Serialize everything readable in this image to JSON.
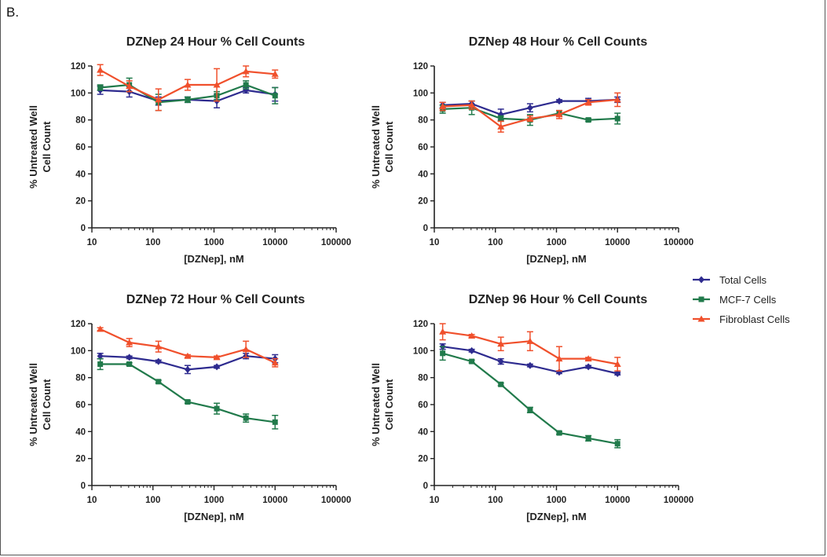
{
  "panel_label": "B.",
  "colors": {
    "Total Cells": "#2e2b8f",
    "MCF-7 Cells": "#217a4b",
    "Fibroblast Cells": "#f0502c"
  },
  "legend": [
    "Total Cells",
    "MCF-7 Cells",
    "Fibroblast Cells"
  ],
  "chart_data": [
    {
      "type": "line",
      "title": "DZNep 24 Hour % Cell Counts",
      "xlabel": "[DZNep], nM",
      "ylabel_lines": [
        "% Untreated Well",
        "Cell Count"
      ],
      "xscale": "log",
      "xlim": [
        10,
        100000
      ],
      "ylim": [
        0,
        120
      ],
      "xticks": [
        "10",
        "100",
        "1000",
        "10000",
        "100000"
      ],
      "yticks": [
        "0",
        "20",
        "40",
        "60",
        "80",
        "100",
        "120"
      ],
      "x": [
        13.7,
        41,
        123,
        370,
        1111,
        3333,
        10000
      ],
      "series": [
        {
          "name": "Total Cells",
          "marker": "diamond",
          "values": [
            102,
            101,
            94,
            95,
            94,
            102,
            99
          ],
          "err": [
            3,
            4,
            3,
            2,
            5,
            2,
            5
          ]
        },
        {
          "name": "MCF-7 Cells",
          "marker": "square",
          "values": [
            104,
            106,
            93,
            95,
            98,
            106,
            98
          ],
          "err": [
            2,
            5,
            6,
            2,
            3,
            3,
            6
          ]
        },
        {
          "name": "Fibroblast Cells",
          "marker": "triangle",
          "values": [
            117,
            105,
            95,
            106,
            106,
            116,
            114
          ],
          "err": [
            4,
            4,
            8,
            4,
            12,
            4,
            3
          ]
        }
      ]
    },
    {
      "type": "line",
      "title": "DZNep 48 Hour % Cell Counts",
      "xlabel": "[DZNep], nM",
      "ylabel_lines": [
        "% Untreated Well",
        "Cell Count"
      ],
      "xscale": "log",
      "xlim": [
        10,
        100000
      ],
      "ylim": [
        0,
        120
      ],
      "xticks": [
        "10",
        "100",
        "1000",
        "10000",
        "100000"
      ],
      "yticks": [
        "0",
        "20",
        "40",
        "60",
        "80",
        "100",
        "120"
      ],
      "x": [
        13.7,
        41,
        123,
        370,
        1111,
        3333,
        10000
      ],
      "series": [
        {
          "name": "Total Cells",
          "marker": "diamond",
          "values": [
            91,
            92,
            84,
            89,
            94,
            94,
            95
          ],
          "err": [
            2,
            2,
            4,
            3,
            1,
            2,
            2
          ]
        },
        {
          "name": "MCF-7 Cells",
          "marker": "square",
          "values": [
            88,
            89,
            81,
            80,
            85,
            80,
            81
          ],
          "err": [
            3,
            5,
            2,
            4,
            2,
            1,
            4
          ]
        },
        {
          "name": "Fibroblast Cells",
          "marker": "triangle",
          "values": [
            90,
            91,
            75,
            81,
            84,
            93,
            95
          ],
          "err": [
            3,
            3,
            4,
            2,
            3,
            2,
            5
          ]
        }
      ]
    },
    {
      "type": "line",
      "title": "DZNep 72 Hour % Cell Counts",
      "xlabel": "[DZNep], nM",
      "ylabel_lines": [
        "% Untreated Well",
        "Cell Count"
      ],
      "xscale": "log",
      "xlim": [
        10,
        100000
      ],
      "ylim": [
        0,
        120
      ],
      "xticks": [
        "10",
        "100",
        "1000",
        "10000",
        "100000"
      ],
      "yticks": [
        "0",
        "20",
        "40",
        "60",
        "80",
        "100",
        "120"
      ],
      "x": [
        13.7,
        41,
        123,
        370,
        1111,
        3333,
        10000
      ],
      "series": [
        {
          "name": "Total Cells",
          "marker": "diamond",
          "values": [
            96,
            95,
            92,
            86,
            88,
            96,
            94
          ],
          "err": [
            2,
            1,
            1,
            3,
            1,
            2,
            3
          ]
        },
        {
          "name": "MCF-7 Cells",
          "marker": "square",
          "values": [
            90,
            90,
            77,
            62,
            57,
            50,
            47
          ],
          "err": [
            4,
            1,
            1,
            1,
            4,
            3,
            5
          ]
        },
        {
          "name": "Fibroblast Cells",
          "marker": "triangle",
          "values": [
            116,
            106,
            103,
            96,
            95,
            101,
            91
          ],
          "err": [
            1,
            3,
            4,
            1,
            1,
            6,
            3
          ]
        }
      ]
    },
    {
      "type": "line",
      "title": "DZNep 96 Hour % Cell Counts",
      "xlabel": "[DZNep], nM",
      "ylabel_lines": [
        "% Untreated Well",
        "Cell Count"
      ],
      "xscale": "log",
      "xlim": [
        10,
        100000
      ],
      "ylim": [
        0,
        120
      ],
      "xticks": [
        "10",
        "100",
        "1000",
        "10000",
        "100000"
      ],
      "yticks": [
        "0",
        "20",
        "40",
        "60",
        "80",
        "100",
        "120"
      ],
      "x": [
        13.7,
        41,
        123,
        370,
        1111,
        3333,
        10000
      ],
      "series": [
        {
          "name": "Total Cells",
          "marker": "diamond",
          "values": [
            103,
            100,
            92,
            89,
            84,
            88,
            83
          ],
          "err": [
            2,
            1,
            2,
            1,
            1,
            1,
            1
          ]
        },
        {
          "name": "MCF-7 Cells",
          "marker": "square",
          "values": [
            98,
            92,
            75,
            56,
            39,
            35,
            31
          ],
          "err": [
            5,
            1,
            1,
            2,
            1,
            2,
            3
          ]
        },
        {
          "name": "Fibroblast Cells",
          "marker": "triangle",
          "values": [
            114,
            111,
            105,
            107,
            94,
            94,
            90
          ],
          "err": [
            6,
            1,
            5,
            7,
            9,
            1,
            5
          ]
        }
      ]
    }
  ]
}
